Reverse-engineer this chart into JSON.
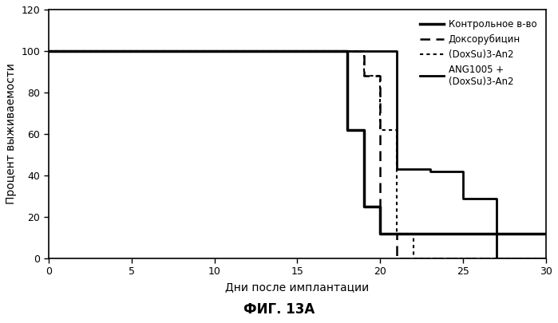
{
  "title": "ФИГ. 13А",
  "xlabel": "Дни после имплантации",
  "ylabel": "Процент выживаемости",
  "xlim": [
    0,
    30
  ],
  "ylim": [
    0,
    120
  ],
  "xticks": [
    0,
    5,
    10,
    15,
    20,
    25,
    30
  ],
  "yticks": [
    0,
    20,
    40,
    60,
    80,
    100,
    120
  ],
  "background_color": "#ffffff",
  "curves": {
    "control": {
      "label": "Контрольное в-во",
      "color": "#000000",
      "linewidth": 2.5,
      "linestyle": "solid",
      "x": [
        0,
        18,
        18,
        19,
        19,
        20,
        20,
        30
      ],
      "y": [
        100,
        100,
        62,
        62,
        25,
        25,
        12,
        12
      ]
    },
    "dox": {
      "label": "Доксорубицин",
      "color": "#000000",
      "linewidth": 1.8,
      "linestyle": "dashed",
      "x": [
        0,
        19,
        19,
        20,
        20,
        21,
        21,
        30
      ],
      "y": [
        100,
        100,
        88,
        88,
        12,
        12,
        0,
        0
      ]
    },
    "doxsu": {
      "label": "(DoxSu)3-An2",
      "color": "#000000",
      "linewidth": 1.5,
      "linestyle": "dotted",
      "x": [
        0,
        19,
        19,
        20,
        20,
        21,
        21,
        22,
        22,
        30
      ],
      "y": [
        100,
        100,
        88,
        88,
        62,
        62,
        12,
        12,
        0,
        0
      ]
    },
    "ang_doxsu": {
      "label": "ANG1005 +\n(DoxSu)3-An2",
      "color": "#000000",
      "linewidth": 2.0,
      "linestyle": "solid",
      "x": [
        0,
        21,
        21,
        23,
        23,
        25,
        25,
        27,
        27,
        30
      ],
      "y": [
        100,
        100,
        43,
        43,
        42,
        42,
        29,
        29,
        0,
        0
      ]
    }
  },
  "legend_labels": [
    "Контрольное в-во",
    "Доксорубицин",
    "(DoxSu)3-An2",
    "ANG1005 +\n(DoxSu)3-An2"
  ]
}
